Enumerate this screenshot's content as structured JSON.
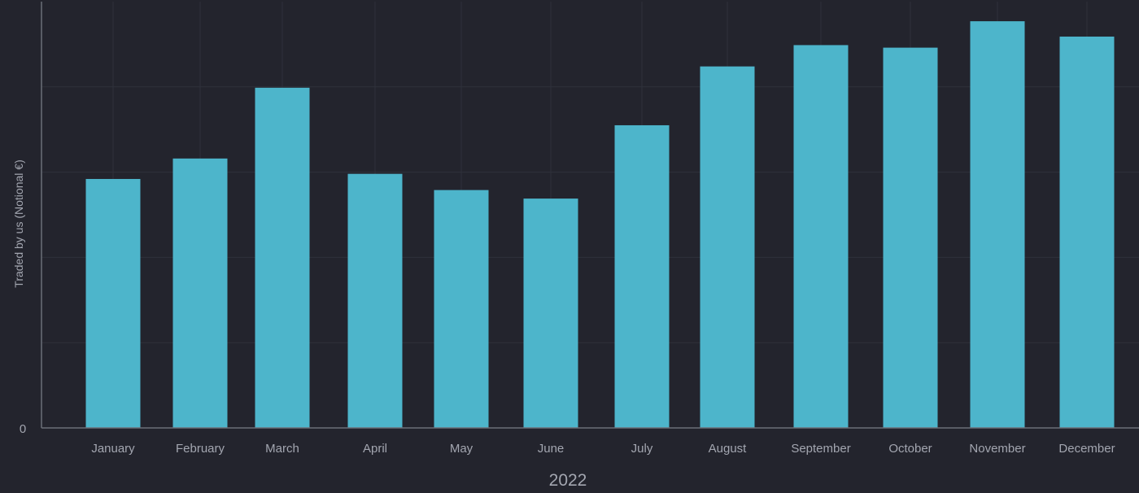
{
  "chart_data": {
    "type": "bar",
    "xlabel": "2022",
    "ylabel": "Traded by us (Notional €)",
    "y_tick_labels": [
      "0"
    ],
    "ylim": [
      0,
      100
    ],
    "grid": true,
    "colors": {
      "background": "#23242d",
      "bar": "#4db5cb",
      "grid": "#2f313b",
      "axis": "#6b6e78",
      "text": "#a3a6b0"
    },
    "categories": [
      "January",
      "February",
      "March",
      "April",
      "May",
      "June",
      "July",
      "August",
      "September",
      "October",
      "November",
      "December"
    ],
    "values": [
      58.4,
      63.2,
      79.8,
      59.6,
      55.8,
      53.8,
      71.0,
      84.8,
      89.8,
      89.2,
      95.4,
      91.8
    ]
  }
}
